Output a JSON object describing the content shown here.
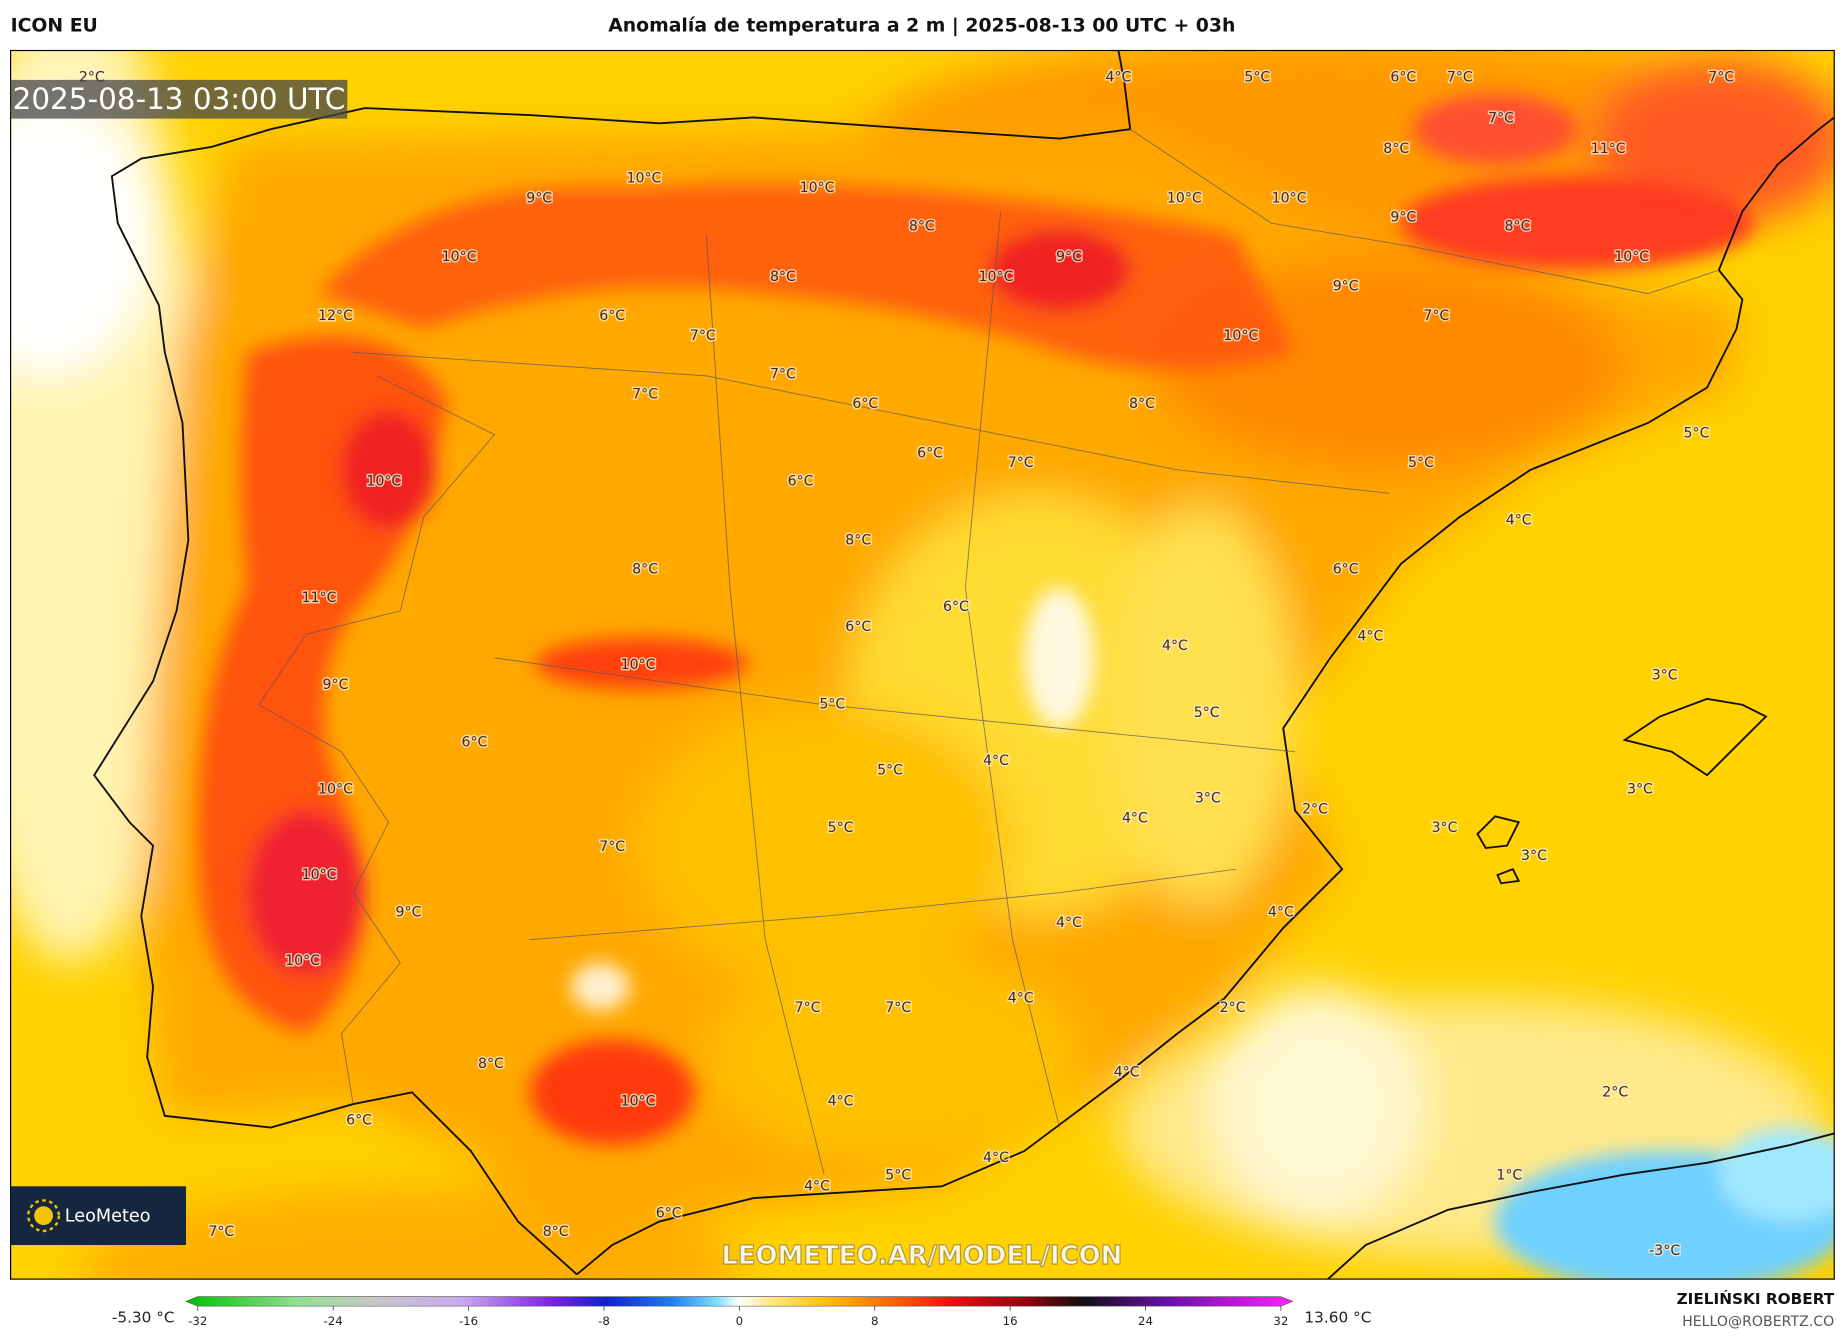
{
  "header": {
    "model": "ICON EU",
    "title": "Anomalía de temperatura a 2 m | 2025-08-13 00 UTC + 03h"
  },
  "timestamp": "2025-08-13 03:00 UTC",
  "map": {
    "labels": [
      "2°C",
      "4°C",
      "5°C",
      "6°C",
      "7°C",
      "7°C",
      "7°C",
      "8°C",
      "11°C",
      "10°C",
      "10°C",
      "9°C",
      "10°C",
      "10°C",
      "9°C",
      "8°C",
      "8°C",
      "10°C",
      "9°C",
      "10°C",
      "8°C",
      "10°C",
      "9°C",
      "12°C",
      "6°C",
      "7°C",
      "7°C",
      "10°C",
      "7°C",
      "7°C",
      "6°C",
      "8°C",
      "5°C",
      "6°C",
      "7°C",
      "5°C",
      "10°C",
      "6°C",
      "4°C",
      "8°C",
      "8°C",
      "6°C",
      "11°C",
      "6°C",
      "6°C",
      "4°C",
      "4°C",
      "10°C",
      "3°C",
      "9°C",
      "5°C",
      "5°C",
      "6°C",
      "4°C",
      "5°C",
      "10°C",
      "3°C",
      "3°C",
      "2°C",
      "4°C",
      "5°C",
      "3°C",
      "7°C",
      "3°C",
      "10°C",
      "9°C",
      "4°C",
      "4°C",
      "10°C",
      "4°C",
      "7°C",
      "7°C",
      "2°C",
      "8°C",
      "4°C",
      "2°C",
      "10°C",
      "4°C",
      "6°C",
      "4°C",
      "1°C",
      "5°C",
      "4°C",
      "6°C",
      "7°C",
      "8°C",
      "-3°C"
    ]
  },
  "logo": "LeoMeteo",
  "watermark": "LEOMETEO.AR/MODEL/ICON",
  "colorbar": {
    "min_label": "-5.30 °C",
    "max_label": "13.60 °C",
    "ticks": [
      -32,
      -24,
      -16,
      -8,
      0,
      8,
      16,
      24,
      32
    ]
  },
  "credits": {
    "author": "ZIELIŃSKI ROBERT",
    "email": "HELLO@ROBERTZ.CO"
  }
}
